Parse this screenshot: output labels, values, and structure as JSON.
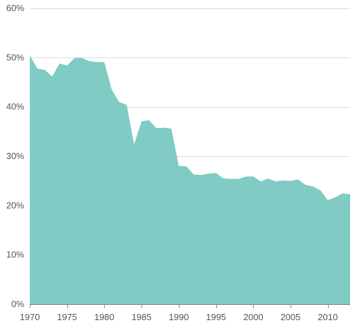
{
  "chart_data": {
    "type": "area",
    "title": "",
    "xlabel": "",
    "ylabel": "",
    "x": [
      1970,
      1971,
      1972,
      1973,
      1974,
      1975,
      1976,
      1977,
      1978,
      1979,
      1980,
      1981,
      1982,
      1983,
      1984,
      1985,
      1986,
      1987,
      1988,
      1989,
      1990,
      1991,
      1992,
      1993,
      1994,
      1995,
      1996,
      1997,
      1998,
      1999,
      2000,
      2001,
      2002,
      2003,
      2004,
      2005,
      2006,
      2007,
      2008,
      2009,
      2010,
      2011,
      2012,
      2013
    ],
    "series": [
      {
        "values": [
          50.5,
          47.8,
          47.5,
          46.2,
          48.8,
          48.4,
          49.9,
          49.9,
          49.3,
          49.1,
          49.1,
          43.5,
          41.0,
          40.4,
          32.4,
          37.1,
          37.3,
          35.7,
          35.8,
          35.6,
          28.0,
          28.0,
          26.3,
          26.2,
          26.5,
          26.6,
          25.5,
          25.4,
          25.4,
          25.9,
          25.9,
          24.9,
          25.5,
          24.9,
          25.1,
          25.0,
          25.3,
          24.2,
          23.9,
          23.1,
          21.1,
          21.7,
          22.5,
          22.3
        ]
      }
    ],
    "xlim": [
      1970,
      2013
    ],
    "ylim": [
      0,
      60
    ],
    "x_ticks": [
      1970,
      1975,
      1980,
      1985,
      1990,
      1995,
      2000,
      2005,
      2010
    ],
    "x_tick_labels": [
      "1970",
      "1975",
      "1980",
      "1985",
      "1990",
      "1995",
      "2000",
      "2005",
      "2010"
    ],
    "y_ticks": [
      0,
      10,
      20,
      30,
      40,
      50,
      60
    ],
    "y_tick_labels": [
      "0%",
      "10%",
      "20%",
      "30%",
      "40%",
      "50%",
      "60%"
    ],
    "grid": true,
    "colors": {
      "area_fill": "#80cbc4",
      "grid": "#dcdcdc",
      "text": "#555555",
      "axis": "#888888"
    }
  }
}
